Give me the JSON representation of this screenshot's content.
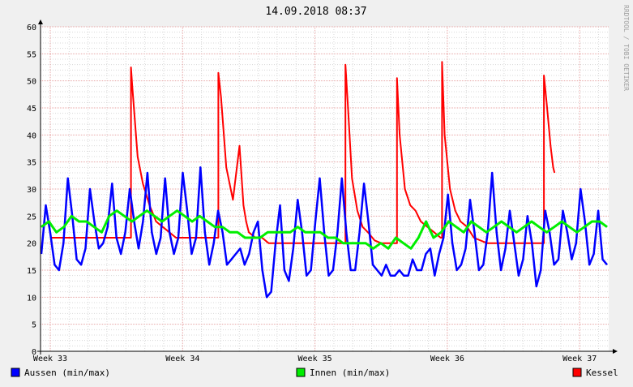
{
  "chart_data": {
    "type": "line",
    "title": "14.09.2018 08:37",
    "watermark": "RRDTOOL / TOBI OETIKER",
    "y_ticks": [
      "0",
      "5",
      "10",
      "15",
      "20",
      "25",
      "30",
      "35",
      "40",
      "45",
      "50",
      "55",
      "60"
    ],
    "ylim": [
      0,
      60
    ],
    "x_ticks": [
      "Week 33",
      "Week 34",
      "Week 35",
      "Week 36",
      "Week 37"
    ],
    "grid": true,
    "legend_position": "bottom",
    "colors": {
      "canvas": "#ffffff",
      "background": "#f0f0f0",
      "major_grid": "#e8a6a6",
      "minor_grid": "#d8d8d8"
    },
    "series": [
      {
        "name": "Aussen (min/max)",
        "color": "#0000ff",
        "values": [
          18,
          27,
          22,
          16,
          15,
          20,
          32,
          25,
          17,
          16,
          19,
          30,
          24,
          19,
          20,
          23,
          31,
          21,
          18,
          22,
          30,
          24,
          19,
          24,
          33,
          22,
          18,
          21,
          32,
          22,
          18,
          21,
          33,
          26,
          18,
          21,
          34,
          22,
          16,
          20,
          26,
          22,
          16,
          17,
          18,
          19,
          16,
          18,
          22,
          24,
          15,
          10,
          11,
          20,
          27,
          15,
          13,
          19,
          28,
          22,
          14,
          15,
          24,
          32,
          22,
          14,
          15,
          22,
          32,
          22,
          15,
          15,
          22,
          31,
          24,
          16,
          15,
          14,
          16,
          14,
          14,
          15,
          14,
          14,
          17,
          15,
          15,
          18,
          19,
          14,
          18,
          21,
          29,
          20,
          15,
          16,
          19,
          28,
          22,
          15,
          16,
          22,
          33,
          22,
          15,
          19,
          26,
          20,
          14,
          17,
          25,
          20,
          12,
          15,
          26,
          22,
          16,
          17,
          26,
          22,
          17,
          20,
          30,
          24,
          16,
          18,
          26,
          17,
          16
        ]
      },
      {
        "name": "Innen (min/max)",
        "color": "#00ee00",
        "values": [
          23,
          24,
          22,
          23,
          25,
          24,
          24,
          23,
          22,
          25,
          26,
          25,
          24,
          25,
          26,
          25,
          24,
          25,
          26,
          25,
          24,
          25,
          24,
          23,
          23,
          22,
          22,
          21,
          21,
          21,
          22,
          22,
          22,
          22,
          23,
          22,
          22,
          22,
          21,
          21,
          20,
          20,
          20,
          20,
          19,
          20,
          19,
          21,
          20,
          19,
          21,
          24,
          21,
          22,
          24,
          23,
          22,
          24,
          23,
          22,
          23,
          24,
          23,
          22,
          23,
          24,
          23,
          22,
          23,
          24,
          23,
          22,
          23,
          24,
          24,
          23
        ]
      },
      {
        "name": "Kessel",
        "color": "#ff0000",
        "x": [
          0,
          0.61,
          0.61,
          0.62,
          0.66,
          0.7,
          0.75,
          0.8,
          0.85,
          0.9,
          0.95,
          0.97,
          1.27,
          1.27,
          1.29,
          1.33,
          1.38,
          1.43,
          1.46,
          1.48,
          1.5,
          1.55,
          1.6,
          1.65,
          1.7,
          1.8,
          1.85,
          1.9,
          2.23,
          2.23,
          2.25,
          2.28,
          2.32,
          2.36,
          2.4,
          2.45,
          2.5,
          2.6,
          2.62,
          2.62,
          2.64,
          2.68,
          2.72,
          2.76,
          2.8,
          2.85,
          2.9,
          2.95,
          2.96,
          2.96,
          2.98,
          3.02,
          3.06,
          3.1,
          3.15,
          3.2,
          3.3,
          3.5,
          3.73,
          3.73,
          3.75,
          3.78,
          3.8,
          3.81
        ],
        "y": [
          21,
          21,
          52.5,
          49,
          36,
          31,
          27,
          24,
          23,
          22,
          21,
          21,
          21,
          51.5,
          47,
          34,
          28,
          38,
          27,
          24,
          22,
          21,
          21,
          20,
          20,
          20,
          20,
          20,
          20,
          53,
          45,
          32,
          26,
          23,
          22,
          20.5,
          20,
          20,
          20,
          50.5,
          40,
          30,
          27,
          26,
          24,
          23,
          22,
          21,
          21,
          53.5,
          40,
          30,
          26,
          24,
          23,
          21,
          20,
          20,
          20,
          51,
          46,
          38,
          34,
          33
        ]
      }
    ]
  }
}
